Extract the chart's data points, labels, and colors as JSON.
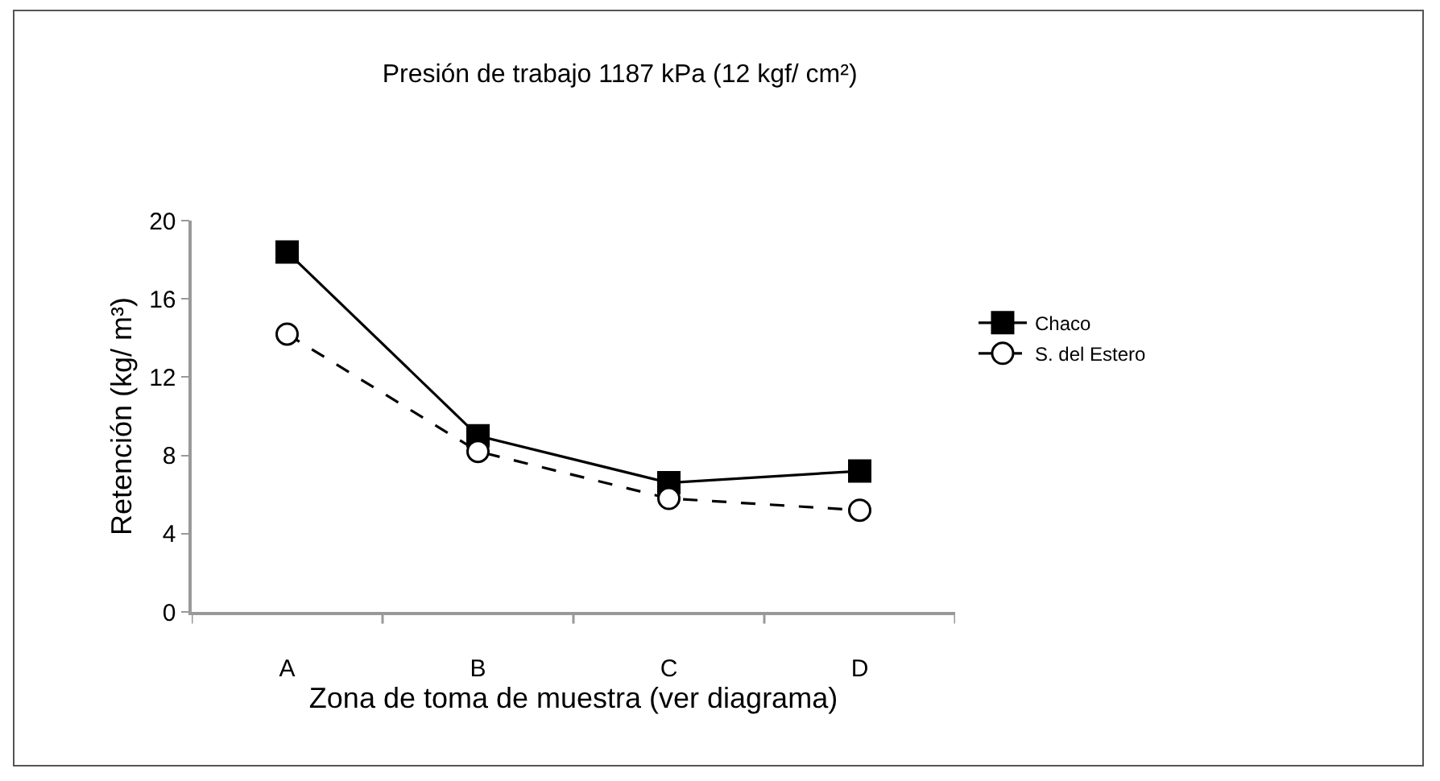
{
  "chart_data": {
    "type": "line",
    "title": "Presión de trabajo 1187 kPa (12 kgf/ cm²)",
    "xlabel": "Zona de toma de muestra (ver diagrama)",
    "ylabel": "Retención (kg/ m³)",
    "categories": [
      "A",
      "B",
      "C",
      "D"
    ],
    "series": [
      {
        "name": "Chaco",
        "color": "#000000",
        "marker": "square",
        "line_style": "solid",
        "values": [
          18.4,
          9.0,
          6.6,
          7.2
        ]
      },
      {
        "name": "S. del Estero",
        "color": "#000000",
        "marker": "circle",
        "line_style": "dashed",
        "values": [
          14.2,
          8.2,
          5.8,
          5.2
        ]
      }
    ],
    "ylim": [
      0,
      20
    ],
    "yticks": [
      0,
      4,
      8,
      12,
      16,
      20
    ],
    "grid": false,
    "legend": "right"
  }
}
